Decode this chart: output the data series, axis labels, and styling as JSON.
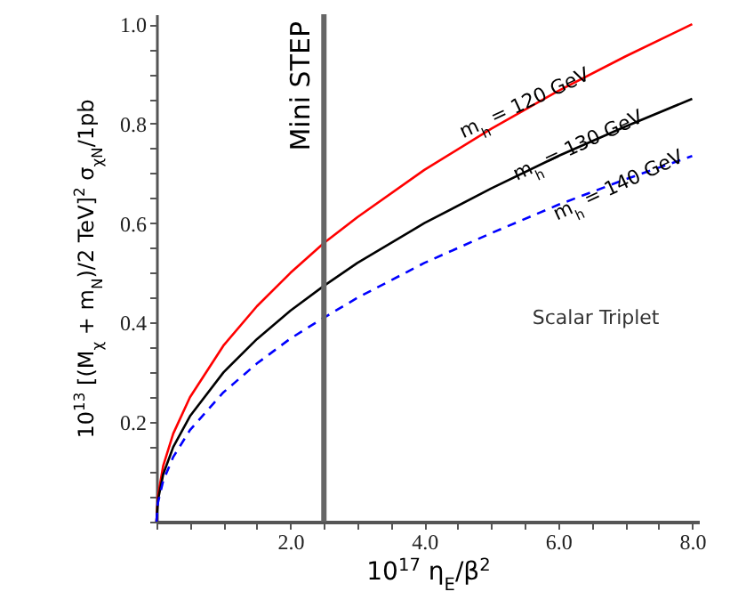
{
  "chart_data": {
    "type": "line",
    "xlabel": "10$^{17}$ η$_{E}$/β$^{2}$",
    "ylabel": "10$^{13}$ [(M$_{χ}$ + m$_{N}$)/2 TeV]$^{2}$ σ$_{χN}$/1pb",
    "x": [
      0,
      0.02,
      0.1,
      0.25,
      0.5,
      1,
      1.5,
      2,
      2.5,
      3,
      4,
      5,
      6,
      7,
      8
    ],
    "series": [
      {
        "color": "#ff0000",
        "values": [
          0,
          0.05,
          0.112,
          0.177,
          0.25,
          0.354,
          0.433,
          0.5,
          0.56,
          0.612,
          0.707,
          0.79,
          0.866,
          0.935,
          1.0
        ]
      },
      {
        "color": "#000000",
        "values": [
          0,
          0.042,
          0.095,
          0.15,
          0.212,
          0.3,
          0.367,
          0.424,
          0.474,
          0.52,
          0.6,
          0.67,
          0.735,
          0.794,
          0.85
        ]
      },
      {
        "color": "#0000ff",
        "line_style": "dashed",
        "values": [
          0,
          0.037,
          0.082,
          0.13,
          0.184,
          0.26,
          0.318,
          0.368,
          0.41,
          0.45,
          0.52,
          0.58,
          0.637,
          0.688,
          0.735
        ]
      }
    ],
    "xlim": [
      0,
      8.1
    ],
    "ylim": [
      0,
      1.02
    ],
    "xticks": [
      {
        "value": 0,
        "label": null
      },
      {
        "value": 0.5,
        "label": null
      },
      {
        "value": 1,
        "label": null
      },
      {
        "value": 1.5,
        "label": null
      },
      {
        "value": 2,
        "label": "2.0"
      },
      {
        "value": 2.5,
        "label": null
      },
      {
        "value": 3,
        "label": null
      },
      {
        "value": 3.5,
        "label": null
      },
      {
        "value": 4,
        "label": "4.0"
      },
      {
        "value": 4.5,
        "label": null
      },
      {
        "value": 5,
        "label": null
      },
      {
        "value": 5.5,
        "label": null
      },
      {
        "value": 6,
        "label": "6.0"
      },
      {
        "value": 6.5,
        "label": null
      },
      {
        "value": 7,
        "label": null
      },
      {
        "value": 7.5,
        "label": null
      },
      {
        "value": 8,
        "label": "8.0"
      }
    ],
    "yticks": [
      {
        "value": 0,
        "label": null
      },
      {
        "value": 0.05,
        "label": null
      },
      {
        "value": 0.1,
        "label": null
      },
      {
        "value": 0.15,
        "label": null
      },
      0.2,
      {
        "value": 0.25,
        "label": null
      },
      {
        "value": 0.3,
        "label": null
      },
      {
        "value": 0.35,
        "label": null
      },
      0.4,
      {
        "value": 0.45,
        "label": null
      },
      {
        "value": 0.5,
        "label": null
      },
      {
        "value": 0.55,
        "label": null
      },
      0.6,
      {
        "value": 0.65,
        "label": null
      },
      {
        "value": 0.7,
        "label": null
      },
      {
        "value": 0.75,
        "label": null
      },
      0.8,
      {
        "value": 0.85,
        "label": null
      },
      {
        "value": 0.9,
        "label": null
      },
      {
        "value": 0.95,
        "label": null
      },
      {
        "value": 1,
        "label": "1.0"
      }
    ],
    "ref_lines": [
      {
        "axis": "x",
        "value": 2.5,
        "label": "Mini STEP",
        "color": "#666666"
      }
    ],
    "annotations": [
      {
        "text": "m$_{h}$ = 120 GeV",
        "x": 5.5,
        "y": 0.84
      },
      {
        "text": "m$_{h}$ = 130 GeV",
        "x": 6.3,
        "y": 0.755
      },
      {
        "text": "m$_{h}$ = 140 GeV",
        "x": 6.9,
        "y": 0.675
      },
      "Scalar Triplet"
    ],
    "grid": false,
    "marker": "none"
  }
}
